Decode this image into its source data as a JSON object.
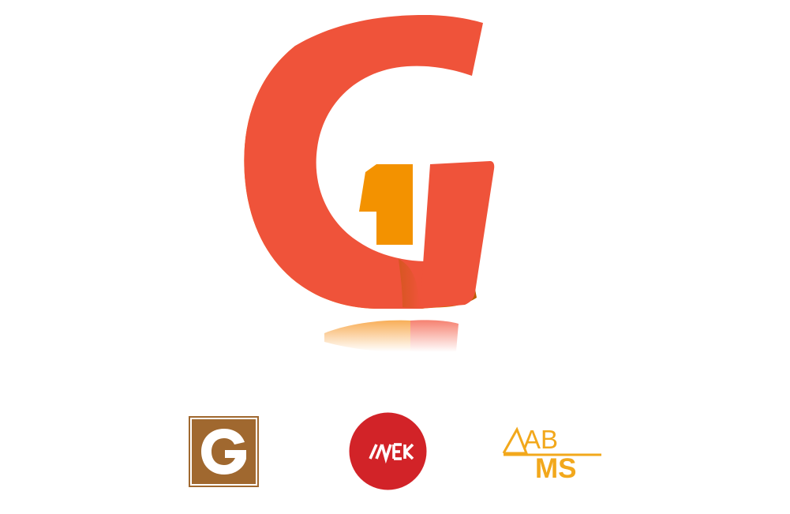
{
  "logos": {
    "main_mark": {
      "kind": "stylized-letter-g",
      "colors": {
        "red": "#EF533A",
        "orange": "#F58A0A",
        "amber": "#F39200",
        "shadow": "#B95A00"
      }
    },
    "variants": [
      {
        "name": "square-g",
        "text": "",
        "colors": {
          "fill": "#A0682F",
          "inner": "#ffffff"
        }
      },
      {
        "name": "red-circle-uek",
        "text": "",
        "colors": {
          "fill": "#D22328",
          "stroke": "#ffffff"
        }
      },
      {
        "name": "abms-wordmark",
        "line1": "AB",
        "line2": "MS",
        "colors": {
          "gold": "#F2A81C"
        }
      }
    ]
  }
}
